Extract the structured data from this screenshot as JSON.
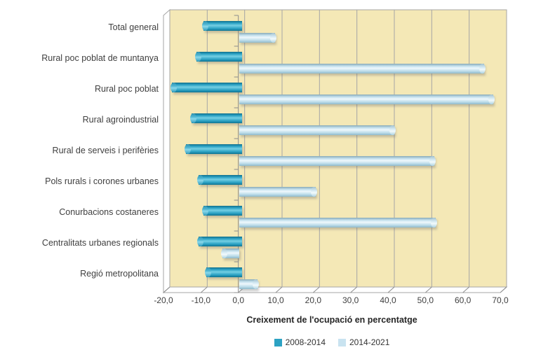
{
  "chart_data": {
    "type": "bar",
    "orientation": "horizontal",
    "title": "",
    "xlabel": "Creixement de l'ocupació en percentatge",
    "ylabel": "",
    "xlim": [
      -20,
      70
    ],
    "x_ticks": [
      -20,
      -10,
      0,
      10,
      20,
      30,
      40,
      50,
      60,
      70
    ],
    "x_tick_labels": [
      "-20,0",
      "-10,0",
      "0,0",
      "10,0",
      "20,0",
      "30,0",
      "40,0",
      "50,0",
      "60,0",
      "70,0"
    ],
    "grid": "vertical-gridlines-on",
    "legend_position": "bottom-center",
    "categories": [
      "Total general",
      "Rural poc poblat de muntanya",
      "Rural poc poblat",
      "Rural agroindustrial",
      "Rural de serveis i perifèries",
      "Pols rurals i corones urbanes",
      "Conurbacions costaneres",
      "Centralitats urbanes regionals",
      "Regió metropolitana"
    ],
    "series": [
      {
        "name": "2008-2014",
        "color": "#2DA2C3",
        "values": [
          -10.3,
          -12.2,
          -18.8,
          -13.5,
          -15.0,
          -11.7,
          -10.3,
          -11.7,
          -9.6
        ]
      },
      {
        "name": "2014-2021",
        "color": "#C9E3F0",
        "values": [
          9.7,
          65.5,
          68.0,
          41.5,
          52.2,
          20.5,
          52.5,
          -4.5,
          5.0
        ]
      }
    ],
    "colors": {
      "plot_background": "#F4E8B6",
      "gridline": "#A6A6A6",
      "axis_line": "#8C8C8C",
      "wall_side": "#FFFFFF",
      "label_text": "#3F3F3F",
      "title_text": "#262626"
    }
  }
}
